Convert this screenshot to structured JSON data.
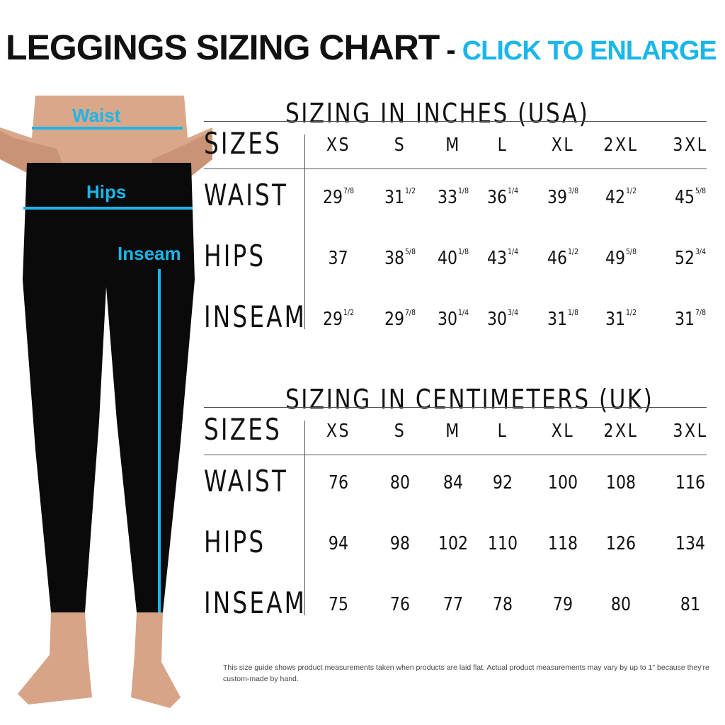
{
  "title": {
    "main": "LEGGINGS SIZING CHART",
    "separator": "-",
    "link": "CLICK TO ENLARGE"
  },
  "colors": {
    "accent": "#1ab6ea",
    "text": "#111111"
  },
  "figure": {
    "labels": {
      "waist": "Waist",
      "hips": "Hips",
      "inseam": "Inseam"
    }
  },
  "inches": {
    "title": "SIZING IN INCHES (USA)",
    "sizes_label": "SIZES",
    "sizes": [
      "XS",
      "S",
      "M",
      "L",
      "XL",
      "2XL",
      "3XL"
    ],
    "rows": [
      {
        "label": "WAIST",
        "values": [
          [
            "29",
            "7/8"
          ],
          [
            "31",
            "1/2"
          ],
          [
            "33",
            "1/8"
          ],
          [
            "36",
            "1/4"
          ],
          [
            "39",
            "3/8"
          ],
          [
            "42",
            "1/2"
          ],
          [
            "45",
            "5/8"
          ]
        ]
      },
      {
        "label": "HIPS",
        "values": [
          [
            "37",
            ""
          ],
          [
            "38",
            "5/8"
          ],
          [
            "40",
            "1/8"
          ],
          [
            "43",
            "1/4"
          ],
          [
            "46",
            "1/2"
          ],
          [
            "49",
            "5/8"
          ],
          [
            "52",
            "3/4"
          ]
        ]
      },
      {
        "label": "INSEAM",
        "values": [
          [
            "29",
            "1/2"
          ],
          [
            "29",
            "7/8"
          ],
          [
            "30",
            "1/4"
          ],
          [
            "30",
            "3/4"
          ],
          [
            "31",
            "1/8"
          ],
          [
            "31",
            "1/2"
          ],
          [
            "31",
            "7/8"
          ]
        ]
      }
    ]
  },
  "cm": {
    "title": "SIZING IN CENTIMETERS (UK)",
    "sizes_label": "SIZES",
    "sizes": [
      "XS",
      "S",
      "M",
      "L",
      "XL",
      "2XL",
      "3XL"
    ],
    "rows": [
      {
        "label": "WAIST",
        "values": [
          "76",
          "80",
          "84",
          "92",
          "100",
          "108",
          "116"
        ]
      },
      {
        "label": "HIPS",
        "values": [
          "94",
          "98",
          "102",
          "110",
          "118",
          "126",
          "134"
        ]
      },
      {
        "label": "INSEAM",
        "values": [
          "75",
          "76",
          "77",
          "78",
          "79",
          "80",
          "81"
        ]
      }
    ]
  },
  "footer": "This size guide shows product measurements taken when products are laid flat. Actual product measurements may vary by up to 1\" because they're custom-made by hand."
}
